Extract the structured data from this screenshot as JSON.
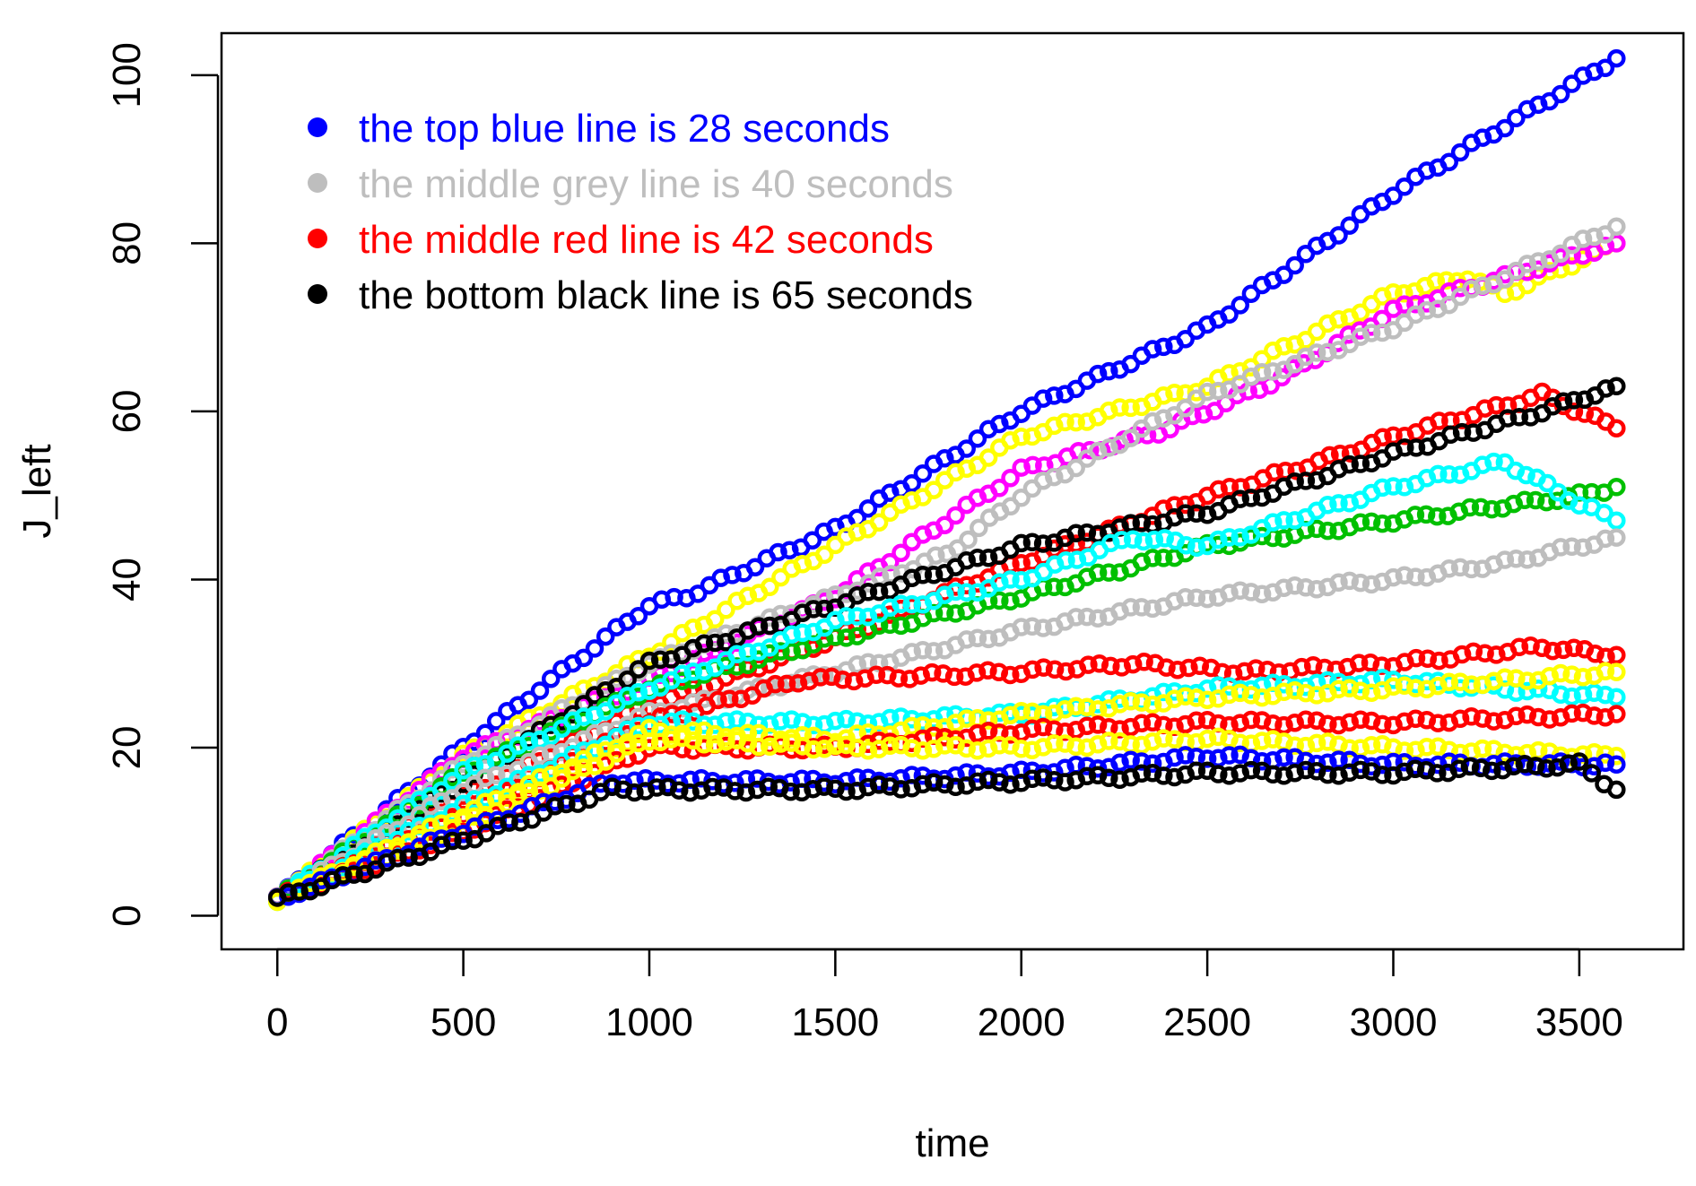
{
  "chart_data": {
    "type": "scatter",
    "title": "",
    "xlabel": "time",
    "ylabel": "J_left",
    "xlim": [
      -150,
      3780
    ],
    "ylim": [
      -4,
      105
    ],
    "xticks": [
      0,
      500,
      1000,
      1500,
      2000,
      2500,
      3000,
      3500
    ],
    "yticks": [
      0,
      20,
      40,
      60,
      80,
      100
    ],
    "grid": false,
    "legend": {
      "position": "top-left",
      "entries": [
        {
          "label": "the top blue line is 28 seconds",
          "color": "#0000ff"
        },
        {
          "label": "the middle grey line is 40 seconds",
          "color": "#bebebe"
        },
        {
          "label": "the middle red line is 42 seconds",
          "color": "#ff0000"
        },
        {
          "label": "the bottom black line is 65 seconds",
          "color": "#000000"
        }
      ]
    },
    "series": [
      {
        "name": "blue-top",
        "color": "#0000ff",
        "points": [
          [
            0,
            2
          ],
          [
            500,
            20
          ],
          [
            1000,
            37
          ],
          [
            1100,
            38
          ],
          [
            1500,
            46
          ],
          [
            2000,
            60
          ],
          [
            2500,
            70
          ],
          [
            3000,
            86
          ],
          [
            3600,
            102
          ]
        ]
      },
      {
        "name": "yellow-upper",
        "color": "#ffff00",
        "points": [
          [
            0,
            2
          ],
          [
            500,
            19
          ],
          [
            1000,
            31
          ],
          [
            1500,
            44
          ],
          [
            2000,
            57
          ],
          [
            2500,
            63
          ],
          [
            3000,
            74
          ],
          [
            3200,
            76
          ],
          [
            3300,
            74
          ],
          [
            3600,
            80
          ]
        ]
      },
      {
        "name": "magenta-upper",
        "color": "#ff00ff",
        "points": [
          [
            0,
            2
          ],
          [
            500,
            19
          ],
          [
            1000,
            28
          ],
          [
            1500,
            38
          ],
          [
            2000,
            53
          ],
          [
            2400,
            58
          ],
          [
            2700,
            64
          ],
          [
            3000,
            72
          ],
          [
            3600,
            80
          ]
        ]
      },
      {
        "name": "grey-upper",
        "color": "#bebebe",
        "points": [
          [
            0,
            2
          ],
          [
            500,
            18
          ],
          [
            1000,
            30
          ],
          [
            1500,
            38
          ],
          [
            1800,
            43
          ],
          [
            2000,
            50
          ],
          [
            2500,
            62
          ],
          [
            3000,
            70
          ],
          [
            3600,
            82
          ]
        ]
      },
      {
        "name": "red-mid",
        "color": "#ff0000",
        "points": [
          [
            0,
            2
          ],
          [
            500,
            14
          ],
          [
            1000,
            25
          ],
          [
            1500,
            33
          ],
          [
            2000,
            42
          ],
          [
            2500,
            50
          ],
          [
            2800,
            54
          ],
          [
            3000,
            57
          ],
          [
            3400,
            62
          ],
          [
            3600,
            58
          ]
        ]
      },
      {
        "name": "black-mid",
        "color": "#000000",
        "points": [
          [
            0,
            2
          ],
          [
            500,
            16
          ],
          [
            1000,
            30
          ],
          [
            1500,
            37
          ],
          [
            2000,
            44
          ],
          [
            2500,
            48
          ],
          [
            3000,
            55
          ],
          [
            3400,
            60
          ],
          [
            3600,
            63
          ]
        ]
      },
      {
        "name": "green-mid",
        "color": "#00c000",
        "points": [
          [
            0,
            2
          ],
          [
            500,
            17
          ],
          [
            1000,
            27
          ],
          [
            1500,
            33
          ],
          [
            2000,
            38
          ],
          [
            2500,
            44
          ],
          [
            3000,
            47
          ],
          [
            3500,
            50
          ],
          [
            3600,
            51
          ]
        ]
      },
      {
        "name": "cyan-mid",
        "color": "#00ffff",
        "points": [
          [
            0,
            2
          ],
          [
            500,
            17
          ],
          [
            1000,
            27
          ],
          [
            1500,
            35
          ],
          [
            2000,
            40
          ],
          [
            2300,
            45
          ],
          [
            2500,
            44
          ],
          [
            3000,
            51
          ],
          [
            3300,
            54
          ],
          [
            3500,
            49
          ],
          [
            3600,
            47
          ]
        ]
      },
      {
        "name": "grey-lower",
        "color": "#bebebe",
        "points": [
          [
            0,
            2
          ],
          [
            500,
            15
          ],
          [
            1000,
            24
          ],
          [
            1500,
            29
          ],
          [
            2000,
            34
          ],
          [
            2500,
            38
          ],
          [
            3000,
            40
          ],
          [
            3300,
            42
          ],
          [
            3600,
            45
          ]
        ]
      },
      {
        "name": "red-low1",
        "color": "#ff0000",
        "points": [
          [
            0,
            2
          ],
          [
            500,
            12
          ],
          [
            1000,
            23
          ],
          [
            1400,
            28
          ],
          [
            2000,
            29
          ],
          [
            2300,
            30
          ],
          [
            2600,
            29
          ],
          [
            3000,
            30
          ],
          [
            3400,
            32
          ],
          [
            3600,
            31
          ]
        ]
      },
      {
        "name": "cyan-low",
        "color": "#00ffff",
        "points": [
          [
            0,
            2
          ],
          [
            500,
            13
          ],
          [
            1000,
            23
          ],
          [
            1500,
            23
          ],
          [
            2000,
            24
          ],
          [
            2500,
            27
          ],
          [
            3000,
            28
          ],
          [
            3600,
            26
          ]
        ]
      },
      {
        "name": "yellow-low1",
        "color": "#ffff00",
        "points": [
          [
            0,
            2
          ],
          [
            500,
            12
          ],
          [
            1000,
            22
          ],
          [
            1500,
            21
          ],
          [
            2000,
            24
          ],
          [
            2500,
            26
          ],
          [
            3000,
            27
          ],
          [
            3600,
            29
          ]
        ]
      },
      {
        "name": "red-low2",
        "color": "#ff0000",
        "points": [
          [
            0,
            2
          ],
          [
            500,
            10
          ],
          [
            1000,
            20
          ],
          [
            1500,
            20
          ],
          [
            2000,
            22
          ],
          [
            2500,
            23
          ],
          [
            3000,
            23
          ],
          [
            3600,
            24
          ]
        ]
      },
      {
        "name": "yellow-low2",
        "color": "#ffff00",
        "points": [
          [
            0,
            2
          ],
          [
            500,
            11
          ],
          [
            1000,
            21
          ],
          [
            1500,
            20
          ],
          [
            2000,
            20
          ],
          [
            2500,
            21
          ],
          [
            3000,
            20
          ],
          [
            3600,
            19
          ]
        ]
      },
      {
        "name": "blue-low",
        "color": "#0000ff",
        "points": [
          [
            0,
            2
          ],
          [
            500,
            10
          ],
          [
            900,
            16
          ],
          [
            1500,
            16
          ],
          [
            2000,
            17
          ],
          [
            2500,
            19
          ],
          [
            3000,
            18
          ],
          [
            3600,
            18
          ]
        ]
      },
      {
        "name": "black-low",
        "color": "#000000",
        "points": [
          [
            0,
            2
          ],
          [
            500,
            9
          ],
          [
            900,
            15
          ],
          [
            1500,
            15
          ],
          [
            2000,
            16
          ],
          [
            2500,
            17
          ],
          [
            3000,
            17
          ],
          [
            3500,
            18
          ],
          [
            3600,
            15
          ]
        ]
      }
    ]
  }
}
